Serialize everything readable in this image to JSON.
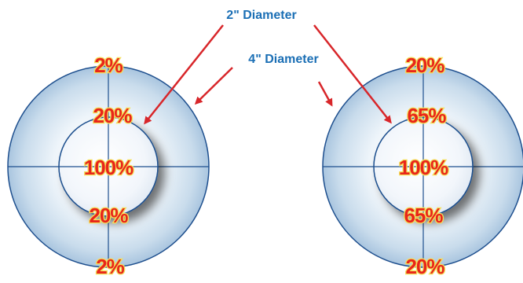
{
  "labels": {
    "two_inch": "2\" Diameter",
    "four_inch": "4\" Diameter"
  },
  "targets": [
    {
      "rings": {
        "outer_edge": "2%",
        "outer_ring": "20%",
        "center": "100%",
        "inner_ring": "20%",
        "bottom_edge": "2%"
      }
    },
    {
      "rings": {
        "outer_edge": "20%",
        "outer_ring": "65%",
        "center": "100%",
        "inner_ring": "65%",
        "bottom_edge": "20%"
      }
    }
  ],
  "colors": {
    "arrow": "#d8262a",
    "label": "#1b6fb5",
    "percent_fill": "#e8251b",
    "percent_outline": "#f4e05a",
    "ring_stroke": "#1e4f8e"
  }
}
